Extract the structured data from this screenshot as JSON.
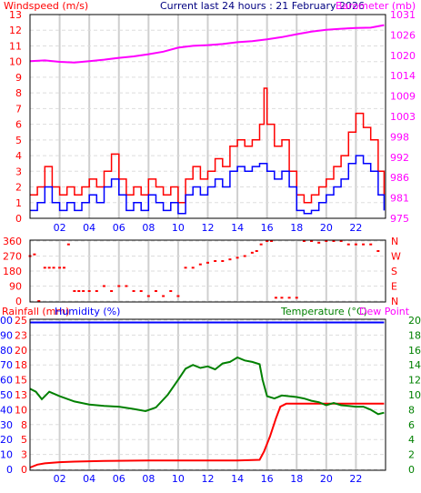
{
  "colors": {
    "wind_max": "#ff0000",
    "wind_avg": "#0000ff",
    "barometer": "#ff00ff",
    "direction": "#ff0000",
    "rainfall": "#ff0000",
    "humidity": "#0000ff",
    "temperature": "#008000",
    "dewpoint": "#ff00ff",
    "axis_red": "#ff0000",
    "axis_blue": "#0000ff",
    "axis_green": "#008000",
    "axis_magenta": "#ff00ff",
    "grid": "#cccccc"
  },
  "chart_data": [
    {
      "type": "line",
      "title": "Current last 24 hours : 21 February 2026",
      "left_label": "Windspeed (m/s)",
      "right_label": "Barometer (mb)",
      "x_ticks": [
        "02",
        "04",
        "06",
        "08",
        "10",
        "12",
        "14",
        "16",
        "18",
        "20",
        "22"
      ],
      "y_left_ticks": [
        "0",
        "1",
        "2",
        "3",
        "4",
        "5",
        "6",
        "7",
        "8",
        "9",
        "10",
        "11",
        "12",
        "13"
      ],
      "y_left_range": [
        0,
        13
      ],
      "y_right_ticks": [
        "975",
        "981",
        "986",
        "992",
        "998",
        "1003",
        "1009",
        "1014",
        "1020",
        "1026",
        "1031"
      ],
      "y_right_range": [
        975,
        1031
      ],
      "series": [
        {
          "key": "barometer",
          "x": [
            0,
            1,
            2,
            3,
            4,
            5,
            6,
            7,
            8,
            9,
            10,
            11,
            12,
            13,
            14,
            15,
            16,
            17,
            18,
            19,
            20,
            21,
            22,
            23,
            23.9
          ],
          "values": [
            1018.2,
            1018.4,
            1018.0,
            1017.8,
            1018.2,
            1018.6,
            1019.1,
            1019.5,
            1020.1,
            1020.8,
            1021.9,
            1022.4,
            1022.6,
            1022.9,
            1023.4,
            1023.7,
            1024.2,
            1024.8,
            1025.6,
            1026.3,
            1026.8,
            1027.1,
            1027.3,
            1027.4,
            1028.1
          ]
        },
        {
          "key": "wind_max",
          "x": [
            0,
            0.5,
            1,
            1.5,
            2,
            2.5,
            3,
            3.5,
            4,
            4.5,
            5,
            5.5,
            6,
            6.5,
            7,
            7.5,
            8,
            8.5,
            9,
            9.5,
            10,
            10.5,
            11,
            11.5,
            12,
            12.5,
            13,
            13.5,
            14,
            14.5,
            15,
            15.5,
            15.8,
            16,
            16.5,
            17,
            17.5,
            18,
            18.5,
            19,
            19.5,
            20,
            20.5,
            21,
            21.5,
            22,
            22.5,
            23,
            23.5,
            23.9
          ],
          "values": [
            1.5,
            2,
            3.3,
            2,
            1.5,
            2,
            1.5,
            2,
            2.5,
            2,
            3,
            4.1,
            2.5,
            1.5,
            2,
            1.5,
            2.5,
            2,
            1.5,
            2,
            1,
            2.5,
            3.3,
            2.5,
            3,
            3.8,
            3.3,
            4.6,
            5,
            4.6,
            5,
            6,
            8.3,
            6,
            4.6,
            5,
            3,
            1.5,
            1,
            1.5,
            2,
            2.5,
            3.3,
            4,
            5.5,
            6.7,
            5.8,
            5,
            3,
            1.5
          ]
        },
        {
          "key": "wind_avg",
          "x": [
            0,
            0.5,
            1,
            1.5,
            2,
            2.5,
            3,
            3.5,
            4,
            4.5,
            5,
            5.5,
            6,
            6.5,
            7,
            7.5,
            8,
            8.5,
            9,
            9.5,
            10,
            10.5,
            11,
            11.5,
            12,
            12.5,
            13,
            13.5,
            14,
            14.5,
            15,
            15.5,
            16,
            16.5,
            17,
            17.5,
            18,
            18.5,
            19,
            19.5,
            20,
            20.5,
            21,
            21.5,
            22,
            22.5,
            23,
            23.5,
            23.9
          ],
          "values": [
            0.5,
            1,
            2,
            1,
            0.5,
            1,
            0.5,
            1,
            1.5,
            1,
            2,
            2.5,
            1.5,
            0.5,
            1,
            0.5,
            1.5,
            1,
            0.5,
            1,
            0.3,
            1.5,
            2,
            1.5,
            2,
            2.5,
            2,
            3,
            3.3,
            3,
            3.3,
            3.5,
            3,
            2.5,
            3,
            2,
            0.5,
            0.3,
            0.5,
            1,
            1.5,
            2,
            2.5,
            3.5,
            4,
            3.5,
            3,
            1.5,
            0.5
          ]
        }
      ]
    },
    {
      "type": "scatter",
      "key": "direction",
      "x_ticks": [
        "02",
        "04",
        "06",
        "08",
        "10",
        "12",
        "14",
        "16",
        "18",
        "20",
        "22"
      ],
      "y_left_ticks": [
        "0",
        "90",
        "180",
        "270",
        "360"
      ],
      "y_left_range": [
        0,
        360
      ],
      "y_right_ticks": [
        "N",
        "E",
        "S",
        "W",
        "N"
      ],
      "x": [
        0,
        0.3,
        0.6,
        1,
        1.3,
        1.6,
        2,
        2.3,
        2.6,
        3,
        3.3,
        3.6,
        4,
        4.5,
        5,
        5.5,
        6,
        6.5,
        7,
        7.5,
        8,
        8.5,
        9,
        9.5,
        10,
        10.5,
        11,
        11.5,
        12,
        12.5,
        13,
        13.5,
        14,
        14.5,
        15,
        15.3,
        15.6,
        16,
        16.3,
        16.6,
        17,
        17.5,
        18,
        18.5,
        19,
        19.5,
        20,
        20.5,
        21,
        21.5,
        22,
        22.5,
        23,
        23.5
      ],
      "values": [
        270,
        280,
        0,
        200,
        200,
        200,
        200,
        200,
        340,
        60,
        60,
        60,
        60,
        60,
        90,
        60,
        90,
        90,
        60,
        60,
        30,
        60,
        30,
        60,
        30,
        200,
        200,
        220,
        230,
        240,
        240,
        250,
        260,
        270,
        290,
        300,
        340,
        360,
        360,
        20,
        20,
        20,
        20,
        360,
        360,
        350,
        360,
        360,
        360,
        340,
        340,
        340,
        340,
        300
      ]
    },
    {
      "type": "line",
      "left_label": "Rainfall (mm)",
      "left_label_2": "Humidity (%)",
      "right_label": "Temperature (°C)",
      "right_label_2": "Dew Point",
      "x_ticks": [
        "02",
        "04",
        "06",
        "08",
        "10",
        "12",
        "14",
        "16",
        "18",
        "20",
        "22"
      ],
      "humidity_ticks": [
        "0",
        "10",
        "20",
        "30",
        "40",
        "50",
        "60",
        "70",
        "80",
        "90",
        "100"
      ],
      "humidity_range": [
        0,
        100
      ],
      "rain_ticks": [
        "0",
        "3",
        "5",
        "8",
        "10",
        "13",
        "15",
        "18",
        "20",
        "23",
        "25"
      ],
      "rain_range": [
        0,
        25
      ],
      "temp_ticks": [
        "0",
        "2",
        "4",
        "6",
        "8",
        "10",
        "12",
        "14",
        "16",
        "18",
        "20"
      ],
      "temp_range": [
        0,
        20
      ],
      "series": [
        {
          "key": "humidity",
          "x": [
            0,
            23.9
          ],
          "values": [
            98.5,
            98.5
          ]
        },
        {
          "key": "rainfall",
          "x": [
            0,
            0.5,
            1,
            2,
            3,
            5,
            8,
            10,
            12,
            14,
            15.5,
            15.8,
            16.2,
            16.6,
            16.9,
            17.3,
            18,
            20,
            22,
            23.9
          ],
          "values": [
            0.3,
            0.8,
            1,
            1.2,
            1.3,
            1.4,
            1.5,
            1.5,
            1.5,
            1.5,
            1.6,
            3,
            5.5,
            8.5,
            10.5,
            11,
            11,
            11,
            11,
            11
          ]
        },
        {
          "key": "temperature",
          "x": [
            0,
            0.4,
            0.8,
            1.3,
            2,
            3,
            4,
            5,
            6,
            7,
            7.8,
            8.5,
            9.3,
            10,
            10.5,
            11,
            11.5,
            12,
            12.5,
            13,
            13.5,
            14,
            14.5,
            15,
            15.5,
            15.7,
            16,
            16.5,
            17,
            18,
            18.5,
            19,
            19.5,
            20,
            20.5,
            21,
            21.5,
            22,
            22.5,
            23,
            23.5,
            23.9
          ],
          "values": [
            10.8,
            10.4,
            9.4,
            10.4,
            9.8,
            9.1,
            8.7,
            8.5,
            8.4,
            8.1,
            7.8,
            8.3,
            10,
            12,
            13.5,
            14,
            13.6,
            13.8,
            13.4,
            14.2,
            14.4,
            15,
            14.6,
            14.4,
            14.1,
            12,
            9.8,
            9.5,
            9.9,
            9.7,
            9.5,
            9.2,
            9.0,
            8.6,
            8.9,
            8.6,
            8.5,
            8.4,
            8.4,
            8.0,
            7.4,
            7.6
          ]
        }
      ]
    }
  ]
}
